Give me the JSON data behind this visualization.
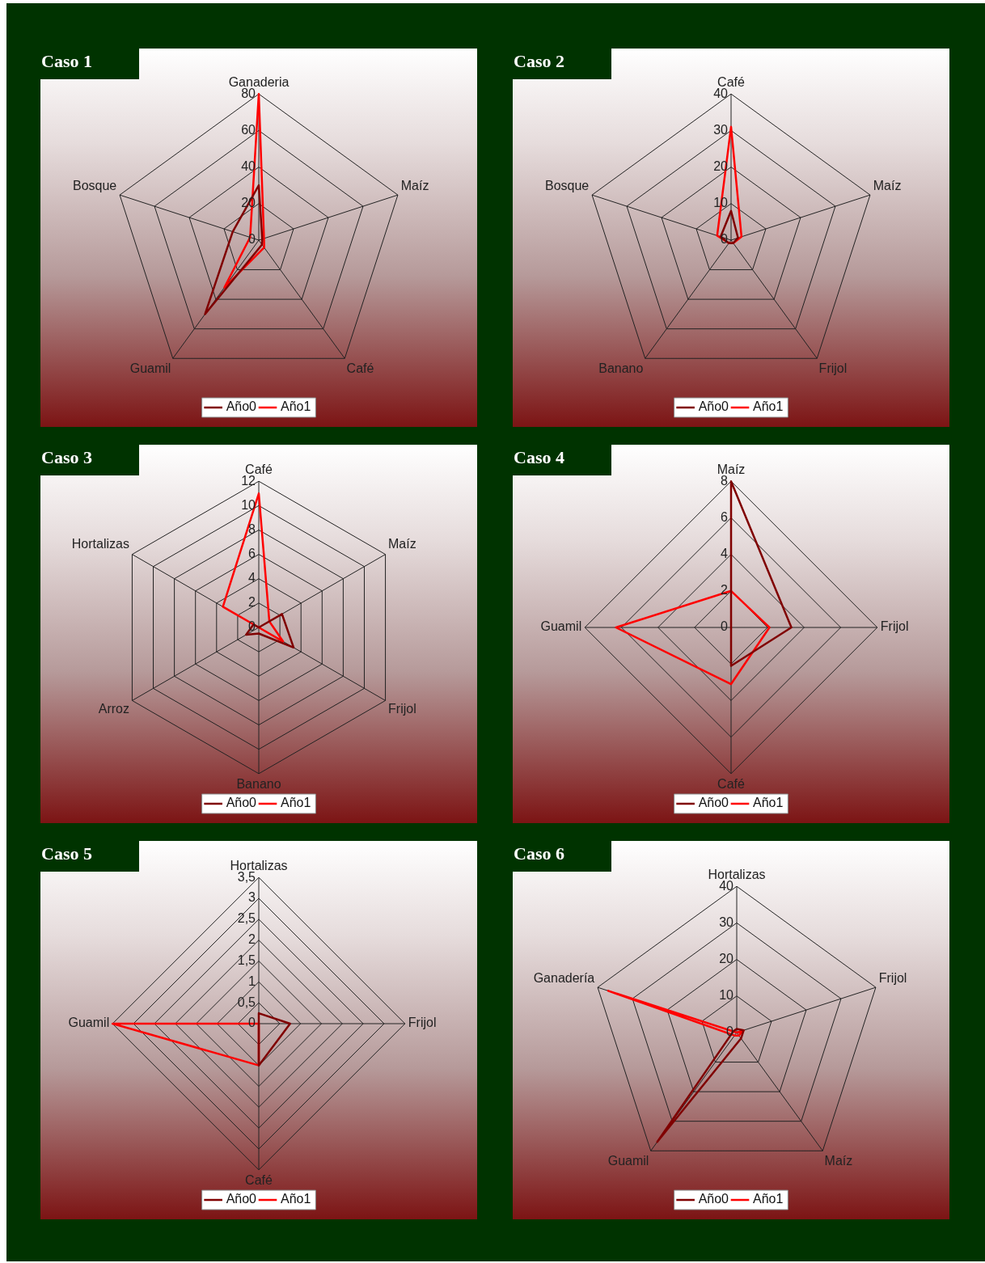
{
  "chart_data": [
    {
      "type": "radar",
      "title": "Caso 1",
      "categories": [
        "Ganaderia",
        "Maíz",
        "Café",
        "Guamil",
        "Bosque"
      ],
      "series": [
        {
          "name": "Año0",
          "color": "#800000",
          "values": [
            30,
            2,
            3,
            50,
            15
          ]
        },
        {
          "name": "Año1",
          "color": "#ff0000",
          "values": [
            80,
            3,
            5,
            32,
            5
          ]
        }
      ],
      "ylim": [
        0,
        80
      ],
      "yticks": [
        0,
        20,
        40,
        60,
        80
      ],
      "grid": true,
      "legend": "bottom",
      "marker": "none"
    },
    {
      "type": "radar",
      "title": "Caso 2",
      "categories": [
        "Café",
        "Maíz",
        "Frijol",
        "Banano",
        "Bosque"
      ],
      "series": [
        {
          "name": "Año0",
          "color": "#800000",
          "values": [
            8,
            2,
            1,
            1,
            3
          ]
        },
        {
          "name": "Año1",
          "color": "#ff0000",
          "values": [
            31,
            3,
            1,
            1,
            4
          ]
        }
      ],
      "ylim": [
        0,
        40
      ],
      "yticks": [
        0,
        10,
        20,
        30,
        40
      ],
      "grid": true,
      "legend": "bottom",
      "marker": "none"
    },
    {
      "type": "radar",
      "title": "Caso 3",
      "categories": [
        "Café",
        "Maíz",
        "Frijol",
        "Banano",
        "Arroz",
        "Hortalizas"
      ],
      "series": [
        {
          "name": "Año0",
          "color": "#800000",
          "values": [
            0,
            2.2,
            3.3,
            0.5,
            1.2,
            0.5
          ]
        },
        {
          "name": "Año1",
          "color": "#ff0000",
          "values": [
            11,
            1,
            2.3,
            0,
            0,
            3.4
          ]
        }
      ],
      "ylim": [
        0,
        12
      ],
      "yticks": [
        0,
        2,
        4,
        6,
        8,
        10,
        12
      ],
      "grid": true,
      "legend": "bottom",
      "marker": "none"
    },
    {
      "type": "radar",
      "title": "Caso 4",
      "categories": [
        "Maíz",
        "Frijol",
        "Café",
        "Guamil"
      ],
      "series": [
        {
          "name": "Año0",
          "color": "#800000",
          "values": [
            8,
            3.3,
            2.1,
            0
          ]
        },
        {
          "name": "Año1",
          "color": "#ff0000",
          "values": [
            2,
            2.1,
            3.1,
            6.3
          ]
        }
      ],
      "ylim": [
        0,
        8
      ],
      "yticks": [
        0,
        2,
        4,
        6,
        8
      ],
      "grid": true,
      "legend": "bottom",
      "marker": "none"
    },
    {
      "type": "radar",
      "title": "Caso 5",
      "categories": [
        "Hortalizas",
        "Frijol",
        "Café",
        "Guamil"
      ],
      "series": [
        {
          "name": "Año0",
          "color": "#800000",
          "values": [
            0.25,
            0.75,
            1,
            0
          ]
        },
        {
          "name": "Año1",
          "color": "#ff0000",
          "values": [
            0,
            0,
            1,
            3.5
          ]
        }
      ],
      "ylim": [
        0,
        3.5
      ],
      "yticks": [
        0,
        {
          "value": 0.5,
          "label": "0,5"
        },
        1,
        {
          "value": 1.5,
          "label": "1,5"
        },
        2,
        {
          "value": 2.5,
          "label": "2,5"
        },
        3,
        {
          "value": 3.5,
          "label": "3,5"
        }
      ],
      "grid": true,
      "legend": "bottom",
      "marker": "none"
    },
    {
      "type": "radar",
      "title": "Caso 6",
      "categories": [
        "Hortalizas",
        "Frijol",
        "Maíz",
        "Guamil",
        "Ganadería"
      ],
      "series": [
        {
          "name": "Año0",
          "color": "#800000",
          "values": [
            1,
            2,
            2,
            37,
            1
          ]
        },
        {
          "name": "Año1",
          "color": "#ff0000",
          "values": [
            0,
            2,
            1,
            1,
            37
          ]
        }
      ],
      "ylim": [
        0,
        40
      ],
      "yticks": [
        0,
        10,
        20,
        30,
        40
      ],
      "grid": true,
      "legend": "bottom",
      "marker": "none"
    }
  ]
}
